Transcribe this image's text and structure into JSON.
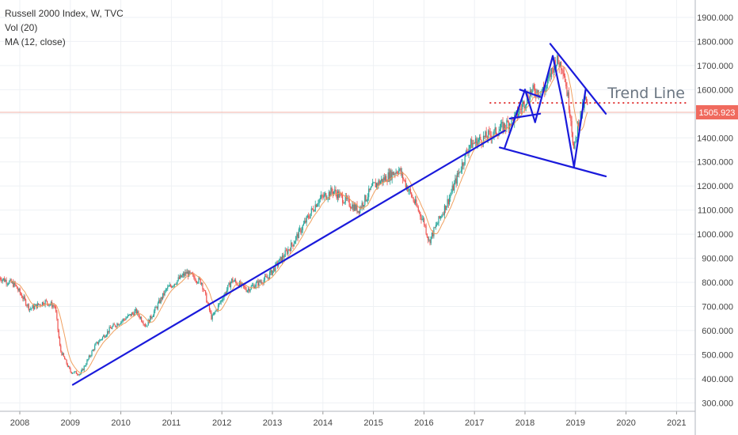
{
  "legend": {
    "title": "Russell 2000 Index, W, TVC",
    "vol": "Vol (20)",
    "ma": "MA (12, close)"
  },
  "colors": {
    "up": "#26a69a",
    "down": "#ef5350",
    "ma": "#f0a060",
    "trendline": "#1a1adb",
    "dotted": "#e03030",
    "price_line": "#f2b3a8",
    "price_tag": "#f06a5e",
    "grid": "#eef1f4"
  },
  "chart_data": {
    "type": "candlestick",
    "title": "Russell 2000 Index, W, TVC",
    "x_tick_labels": [
      "2008",
      "2009",
      "2010",
      "2011",
      "2012",
      "2013",
      "2014",
      "2015",
      "2016",
      "2017",
      "2018",
      "2019",
      "2020",
      "2021"
    ],
    "y_tick_labels": [
      "300.000",
      "400.000",
      "500.000",
      "600.000",
      "700.000",
      "800.000",
      "900.000",
      "1000.000",
      "1100.000",
      "1200.000",
      "1300.000",
      "1400.000",
      "1500.000",
      "1600.000",
      "1700.000",
      "1800.000",
      "1900.000"
    ],
    "ylim": [
      260,
      1920
    ],
    "xlim": [
      2007.6,
      2021.8
    ],
    "last_price": 1505.923,
    "last_price_label": "1505.923",
    "grid": true,
    "price_keypoints": [
      [
        2007.6,
        820
      ],
      [
        2007.9,
        790
      ],
      [
        2008.2,
        690
      ],
      [
        2008.5,
        720
      ],
      [
        2008.7,
        700
      ],
      [
        2008.8,
        520
      ],
      [
        2009.0,
        430
      ],
      [
        2009.2,
        420
      ],
      [
        2009.5,
        540
      ],
      [
        2009.8,
        610
      ],
      [
        2010.3,
        680
      ],
      [
        2010.5,
        620
      ],
      [
        2010.9,
        770
      ],
      [
        2011.3,
        840
      ],
      [
        2011.6,
        800
      ],
      [
        2011.8,
        650
      ],
      [
        2012.2,
        810
      ],
      [
        2012.5,
        770
      ],
      [
        2012.9,
        820
      ],
      [
        2013.4,
        960
      ],
      [
        2013.9,
        1140
      ],
      [
        2014.2,
        1180
      ],
      [
        2014.7,
        1100
      ],
      [
        2015.0,
        1200
      ],
      [
        2015.5,
        1270
      ],
      [
        2016.0,
        1050
      ],
      [
        2016.1,
        970
      ],
      [
        2016.5,
        1150
      ],
      [
        2016.9,
        1370
      ],
      [
        2017.4,
        1420
      ],
      [
        2017.8,
        1480
      ],
      [
        2018.1,
        1590
      ],
      [
        2018.4,
        1600
      ],
      [
        2018.6,
        1720
      ],
      [
        2018.75,
        1700
      ],
      [
        2018.9,
        1500
      ],
      [
        2018.97,
        1340
      ],
      [
        2019.05,
        1460
      ],
      [
        2019.2,
        1560
      ],
      [
        2019.25,
        1506
      ]
    ],
    "annotations": [
      {
        "type": "text",
        "label": "Trend Line",
        "x": 2020.4,
        "y": 1585
      },
      {
        "type": "dotted_hline",
        "x0": 2017.3,
        "x1": 2021.2,
        "y": 1545
      },
      {
        "type": "line",
        "x0": 2009.05,
        "y0": 375,
        "x1": 2017.6,
        "y1": 1430
      },
      {
        "type": "line",
        "x0": 2017.5,
        "y0": 1360,
        "x1": 2019.6,
        "y1": 1240
      },
      {
        "type": "line",
        "x0": 2018.5,
        "y0": 1790,
        "x1": 2019.6,
        "y1": 1500
      },
      {
        "type": "line",
        "x0": 2017.6,
        "y0": 1360,
        "x1": 2018.0,
        "y1": 1600
      },
      {
        "type": "line",
        "x0": 2018.0,
        "y0": 1600,
        "x1": 2018.2,
        "y1": 1465
      },
      {
        "type": "line",
        "x0": 2018.2,
        "y0": 1465,
        "x1": 2018.55,
        "y1": 1740
      },
      {
        "type": "line",
        "x0": 2018.55,
        "y0": 1740,
        "x1": 2018.78,
        "y1": 1510
      },
      {
        "type": "line",
        "x0": 2018.78,
        "y0": 1510,
        "x1": 2018.97,
        "y1": 1280
      },
      {
        "type": "line",
        "x0": 2018.97,
        "y0": 1280,
        "x1": 2019.2,
        "y1": 1600
      },
      {
        "type": "line",
        "x0": 2017.7,
        "y0": 1480,
        "x1": 2018.3,
        "y1": 1500
      },
      {
        "type": "line",
        "x0": 2017.9,
        "y0": 1600,
        "x1": 2018.3,
        "y1": 1570
      }
    ]
  }
}
